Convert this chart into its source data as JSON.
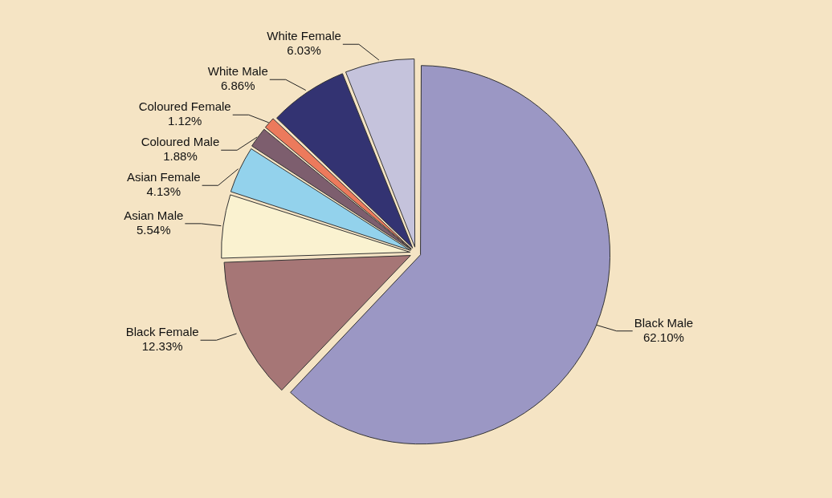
{
  "chart_data": {
    "type": "pie",
    "categories": [
      "Black Male",
      "Black Female",
      "Asian Male",
      "Asian Female",
      "Coloured Male",
      "Coloured Female",
      "White Male",
      "White Female"
    ],
    "values": [
      62.1,
      12.33,
      5.54,
      4.13,
      1.88,
      1.12,
      6.86,
      6.03
    ],
    "value_labels": [
      "62.10%",
      "12.33%",
      "5.54%",
      "4.13%",
      "1.88%",
      "1.12%",
      "6.86%",
      "6.03%"
    ],
    "colors": [
      "#9b97c4",
      "#a67676",
      "#faf2d0",
      "#93d2ec",
      "#7d5e6e",
      "#ec7a5c",
      "#333372",
      "#c5c3dc"
    ]
  }
}
